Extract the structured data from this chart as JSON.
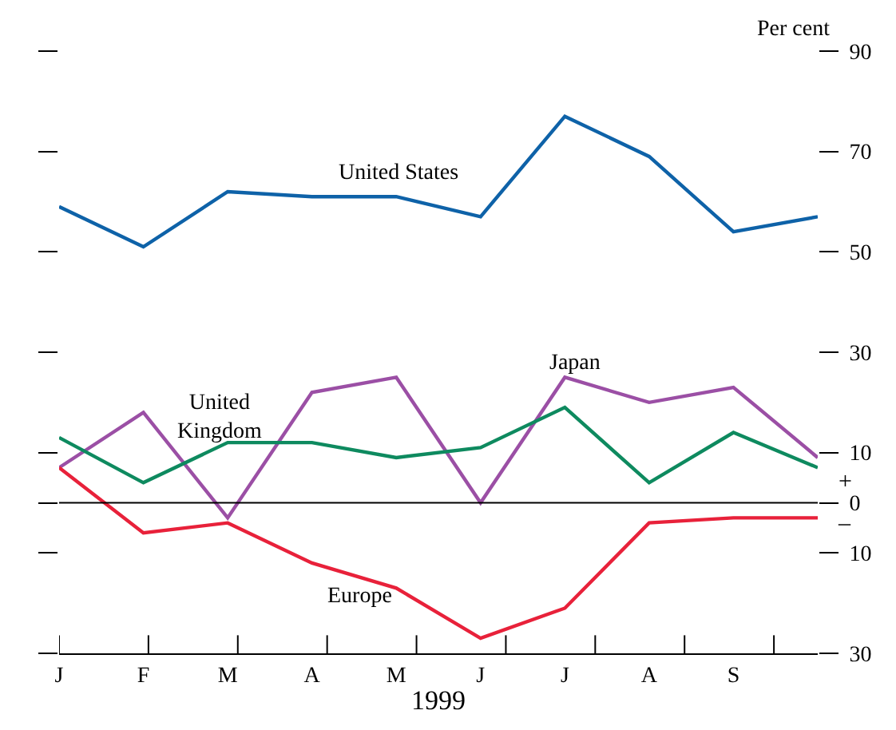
{
  "chart_data": {
    "type": "line",
    "ylabel": "Per cent",
    "xlabel": "1999",
    "categories": [
      "J",
      "F",
      "M",
      "A",
      "M",
      "J",
      "J",
      "A",
      "S",
      null
    ],
    "ylim": [
      -30,
      90
    ],
    "yticks": [
      90,
      70,
      50,
      30,
      10,
      0,
      {
        "value": -10,
        "label": "10"
      },
      {
        "value": -30,
        "label": "30"
      }
    ],
    "series": [
      {
        "name": "United States",
        "color": "#0e62a8",
        "values": [
          59,
          51,
          62,
          61,
          61,
          57,
          77,
          69,
          54,
          57
        ]
      },
      {
        "name": "Japan",
        "color": "#9b4fa5",
        "values": [
          7,
          18,
          -3,
          22,
          25,
          0,
          25,
          20,
          23,
          9
        ]
      },
      {
        "name": "United Kingdom",
        "color": "#0e8a5f",
        "values": [
          13,
          4,
          12,
          12,
          9,
          11,
          19,
          4,
          14,
          7
        ]
      },
      {
        "name": "Europe",
        "color": "#e8213a",
        "values": [
          7,
          -6,
          -4,
          -12,
          -17,
          -27,
          -21,
          -4,
          -3,
          -3
        ]
      }
    ],
    "ref_lines": [
      {
        "axis": "y",
        "value": 0,
        "color": "#000000"
      }
    ],
    "annotations": [
      "+",
      "–"
    ],
    "grid": false,
    "legend": false,
    "marker": "none",
    "line_style": "solid"
  }
}
